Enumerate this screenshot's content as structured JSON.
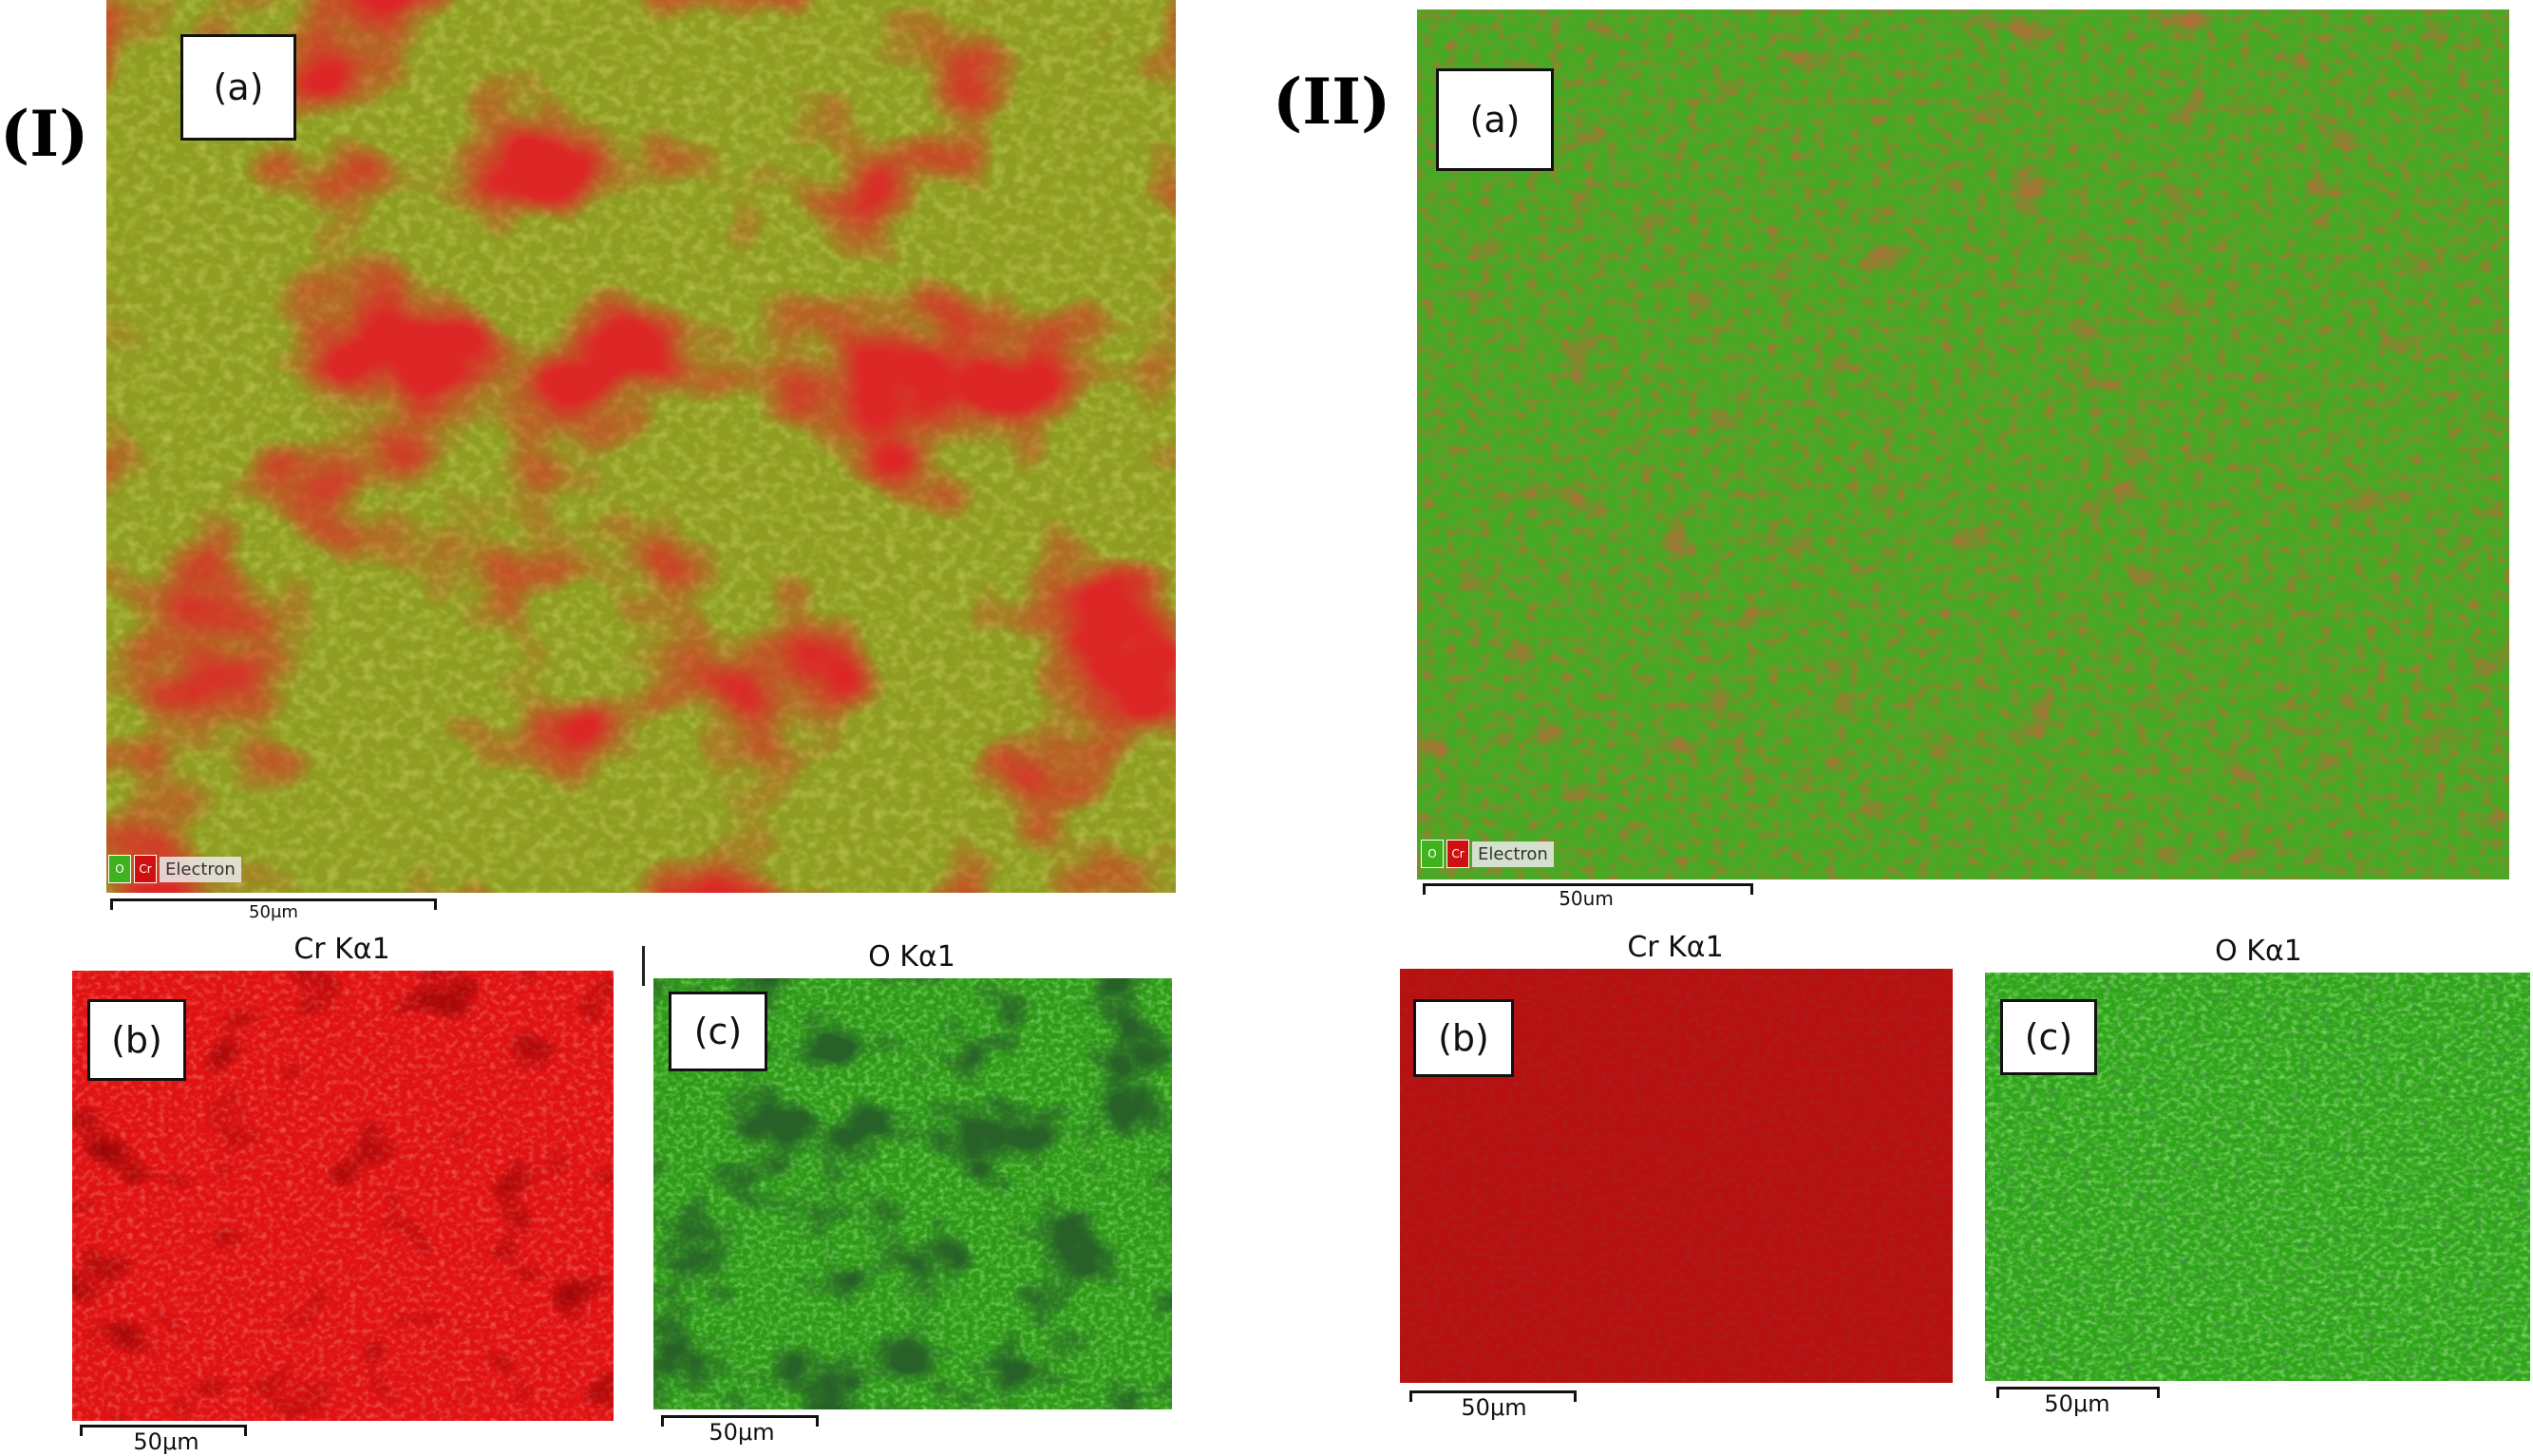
{
  "groups": {
    "I": {
      "label": "(I)"
    },
    "II": {
      "label": "(II)"
    }
  },
  "panels": {
    "I_a": {
      "tag": "(a)",
      "scale": "50μm",
      "legend": {
        "o_label": "O",
        "cr_label": "Cr",
        "electron": "Electron"
      }
    },
    "I_b": {
      "tag": "(b)",
      "title": "Cr Kα1",
      "scale": "50μm"
    },
    "I_c": {
      "tag": "(c)",
      "title": "O Kα1",
      "scale": "50μm"
    },
    "II_a": {
      "tag": "(a)",
      "scale": "50um",
      "legend": {
        "o_label": "O",
        "cr_label": "Cr",
        "electron": "Electron"
      }
    },
    "II_b": {
      "tag": "(b)",
      "title": "Cr Kα1",
      "scale": "50μm"
    },
    "II_c": {
      "tag": "(c)",
      "title": "O Kα1",
      "scale": "50μm"
    }
  },
  "colors": {
    "cr_red": "#c01010",
    "cr_bright": "#e41414",
    "o_green": "#3fb21e",
    "o_dark": "#0a2a08",
    "mixed_olive": "#8a9a1c"
  }
}
